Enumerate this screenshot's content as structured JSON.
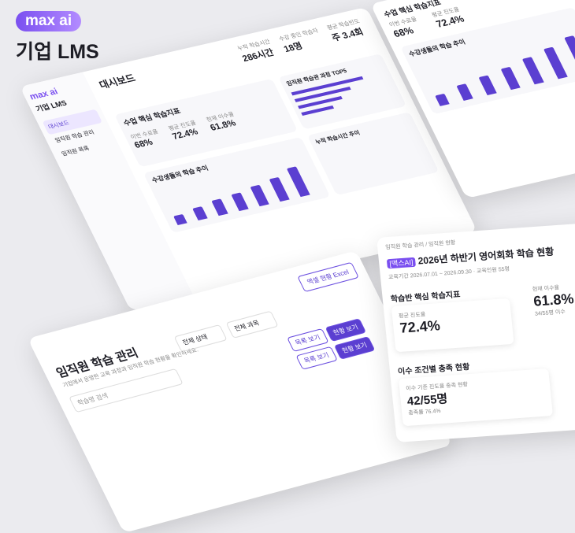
{
  "brand": {
    "logo": "max ai",
    "product": "기업 LMS"
  },
  "dashboard": {
    "title": "대시보드",
    "sidebar": [
      "대시보드",
      "임직원 학습 관리",
      "임직원 목록"
    ],
    "kpis": [
      {
        "label": "누적 학습시간",
        "value": "286시간"
      },
      {
        "label": "수강 중인 학습자",
        "value": "18명"
      },
      {
        "label": "평균 학습빈도",
        "value": "주 3.4회"
      }
    ],
    "section": "수업 핵심 학습지표",
    "metrics": [
      {
        "label": "이번 수료율",
        "value": "68%"
      },
      {
        "label": "평균 진도율",
        "value": "72.4%"
      },
      {
        "label": "현재 이수율",
        "value": "61.8%"
      }
    ],
    "chart_title": "수강생들의 학습 추이",
    "top_title": "임직원 학습관 과정 TOP5",
    "cumulative": "누적 학습시간 추이"
  },
  "course": {
    "breadcrumb": "임직원 학습 관리 / 임직원 현황",
    "tag": "[맥스AI]",
    "title": "2026년 하반기 영어회화 학습 현황",
    "period": "교육기간 2026.07.01 ~ 2026.09.30 · 교육인원 55명",
    "section": "학습반 핵심 학습지표",
    "progress_label": "평균 진도율",
    "progress": "72.4%",
    "completion_label": "현재 이수율",
    "completion": "61.8%",
    "completion_sub": "34/55명 이수",
    "status_title": "이수 조건별 충족 현황",
    "status_label": "이수 기준 진도율 충족 현황",
    "status_value": "42/55명",
    "status_sub": "충족률 76.4%"
  },
  "management": {
    "title": "임직원 학습 관리",
    "subtitle": "기업에서 운영한 교육 과정과 임직원 학습 현황을 확인하세요.",
    "export": "엑셀 현황 Excel",
    "filters": [
      "전체 상태",
      "전체 과목"
    ],
    "search": "학습명 검색",
    "buttons": [
      "목록 보기",
      "현황 보기"
    ]
  }
}
